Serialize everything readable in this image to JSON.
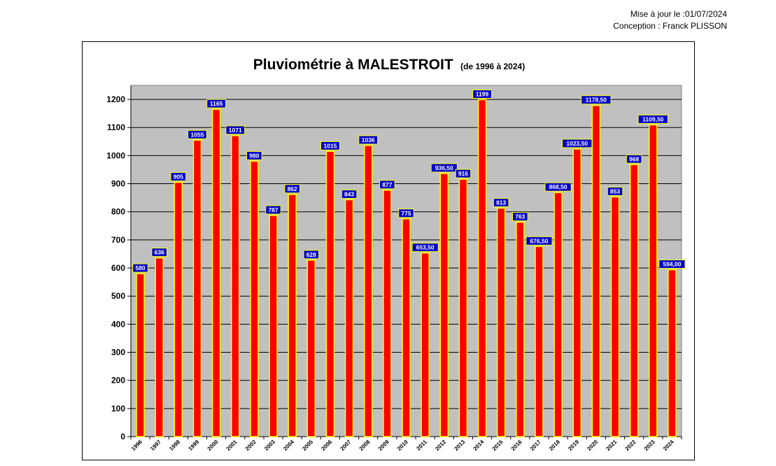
{
  "header": {
    "updated": "Mise à jour le :01/07/2024",
    "credit": "Conception : Franck PLISSON"
  },
  "colors": {
    "plot_background": "#c0c0c0",
    "bar_fill": "#ff0000",
    "bar_border": "#ffff00",
    "label_background": "#0000cc",
    "label_border": "#ffff00"
  },
  "chart_data": {
    "type": "bar",
    "title": "Pluviométrie à MALESTROIT",
    "subtitle": "(de 1996 à 2024)",
    "categories": [
      "1996",
      "1997",
      "1998",
      "1999",
      "2000",
      "2001",
      "2002",
      "2003",
      "2004",
      "2005",
      "2006",
      "2007",
      "2008",
      "2009",
      "2010",
      "2011",
      "2012",
      "2013",
      "2014",
      "2015",
      "2016",
      "2017",
      "2018",
      "2019",
      "2020",
      "2021",
      "2022",
      "2023",
      "2024"
    ],
    "values": [
      580,
      636,
      905,
      1055,
      1165,
      1071,
      980,
      787,
      862,
      628,
      1015,
      843,
      1036,
      877,
      775,
      653.5,
      936.5,
      916,
      1199,
      813,
      763,
      676.5,
      868.5,
      1023.5,
      1178.5,
      853,
      968,
      1109.5,
      594
    ],
    "data_labels": [
      "580",
      "636",
      "905",
      "1055",
      "1165",
      "1071",
      "980",
      "787",
      "862",
      "628",
      "1015",
      "843",
      "1036",
      "877",
      "775",
      "653,50",
      "936,50",
      "916",
      "1199",
      "813",
      "763",
      "676,50",
      "868,50",
      "1023,50",
      "1178,50",
      "853",
      "968",
      "1109,50",
      "594,00"
    ],
    "y_ticks": [
      "0",
      "100",
      "200",
      "300",
      "400",
      "500",
      "600",
      "700",
      "800",
      "900",
      "1000",
      "1100",
      "1200"
    ],
    "ylim": [
      0,
      1250
    ],
    "grid": true,
    "legend": "none"
  }
}
